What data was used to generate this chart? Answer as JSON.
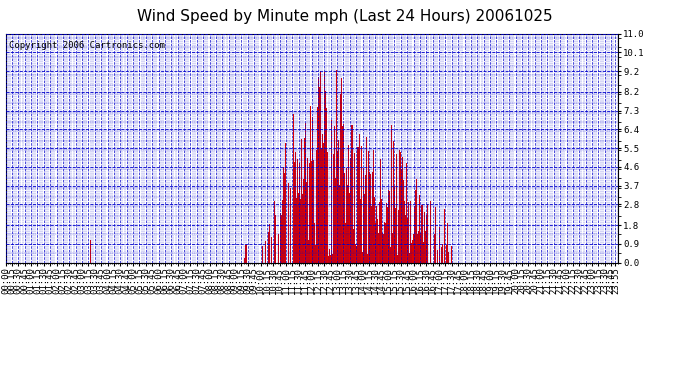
{
  "title": "Wind Speed by Minute mph (Last 24 Hours) 20061025",
  "copyright": "Copyright 2006 Cartronics.com",
  "yticks": [
    0.0,
    0.9,
    1.8,
    2.8,
    3.7,
    4.6,
    5.5,
    6.4,
    7.3,
    8.2,
    9.2,
    10.1,
    11.0
  ],
  "ylim": [
    0.0,
    11.0
  ],
  "bar_color": "#dd0000",
  "bg_color": "#ffffff",
  "grid_major_color": "#0000cc",
  "grid_minor_color": "#0000cc",
  "title_fontsize": 11,
  "copyright_fontsize": 6.5,
  "tick_fontsize": 6.5,
  "xtick_interval_major": 15,
  "xtick_interval_minor": 5
}
